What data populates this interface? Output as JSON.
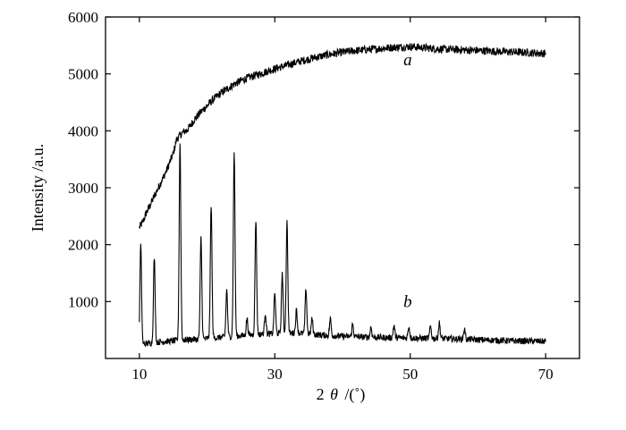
{
  "chart_data": {
    "type": "line",
    "xlabel_parts": {
      "prefix": "2",
      "symbol": "θ",
      "unit": "/(˚)"
    },
    "ylabel": "Intensity /a.u.",
    "xlim": [
      5,
      75
    ],
    "ylim": [
      0,
      6000
    ],
    "x_ticks": [
      10,
      30,
      50,
      70
    ],
    "y_ticks": [
      1000,
      2000,
      3000,
      4000,
      5000,
      6000
    ],
    "grid": false,
    "series": [
      {
        "name": "a",
        "label_at": [
          49,
          5150
        ],
        "points": [
          [
            10.0,
            2300
          ],
          [
            10.5,
            2400
          ],
          [
            11,
            2550
          ],
          [
            12,
            2800
          ],
          [
            13,
            3050
          ],
          [
            14,
            3300
          ],
          [
            15,
            3600
          ],
          [
            15.5,
            3850
          ],
          [
            16,
            3920
          ],
          [
            16.5,
            3980
          ],
          [
            17,
            4010
          ],
          [
            17.5,
            4080
          ],
          [
            18,
            4180
          ],
          [
            19,
            4320
          ],
          [
            20,
            4440
          ],
          [
            21,
            4560
          ],
          [
            22,
            4660
          ],
          [
            23,
            4740
          ],
          [
            24,
            4820
          ],
          [
            25,
            4880
          ],
          [
            26,
            4930
          ],
          [
            27,
            4970
          ],
          [
            28,
            5010
          ],
          [
            29,
            5050
          ],
          [
            30,
            5090
          ],
          [
            32,
            5160
          ],
          [
            34,
            5230
          ],
          [
            36,
            5290
          ],
          [
            38,
            5340
          ],
          [
            40,
            5380
          ],
          [
            42,
            5410
          ],
          [
            44,
            5430
          ],
          [
            46,
            5450
          ],
          [
            48,
            5470
          ],
          [
            50,
            5480
          ],
          [
            52,
            5460
          ],
          [
            54,
            5440
          ],
          [
            56,
            5430
          ],
          [
            58,
            5420
          ],
          [
            60,
            5410
          ],
          [
            62,
            5400
          ],
          [
            64,
            5390
          ],
          [
            66,
            5380
          ],
          [
            68,
            5370
          ],
          [
            70,
            5360
          ]
        ],
        "noise_amp": 70
      },
      {
        "name": "b",
        "label_at": [
          49,
          900
        ],
        "baseline": [
          [
            10.0,
            250
          ],
          [
            11,
            260
          ],
          [
            13,
            290
          ],
          [
            15,
            310
          ],
          [
            17,
            330
          ],
          [
            19,
            340
          ],
          [
            21,
            360
          ],
          [
            23,
            380
          ],
          [
            25,
            400
          ],
          [
            27,
            420
          ],
          [
            29,
            430
          ],
          [
            31,
            440
          ],
          [
            33,
            450
          ],
          [
            35,
            430
          ],
          [
            37,
            410
          ],
          [
            40,
            390
          ],
          [
            45,
            370
          ],
          [
            50,
            360
          ],
          [
            55,
            350
          ],
          [
            60,
            330
          ],
          [
            65,
            310
          ],
          [
            70,
            300
          ]
        ],
        "peaks": [
          [
            10.2,
            2000
          ],
          [
            12.2,
            1780
          ],
          [
            16.0,
            3800
          ],
          [
            19.1,
            2120
          ],
          [
            20.6,
            2710
          ],
          [
            22.9,
            1200
          ],
          [
            24.0,
            3650
          ],
          [
            25.9,
            700
          ],
          [
            27.2,
            2440
          ],
          [
            28.6,
            800
          ],
          [
            30.0,
            1150
          ],
          [
            31.1,
            1500
          ],
          [
            31.8,
            2400
          ],
          [
            33.2,
            850
          ],
          [
            34.6,
            1230
          ],
          [
            35.5,
            700
          ],
          [
            38.2,
            700
          ],
          [
            41.5,
            600
          ],
          [
            44.2,
            550
          ],
          [
            47.6,
            580
          ],
          [
            49.8,
            560
          ],
          [
            53.0,
            560
          ],
          [
            54.3,
            620
          ],
          [
            58.0,
            520
          ]
        ],
        "noise_amp": 55
      }
    ]
  }
}
